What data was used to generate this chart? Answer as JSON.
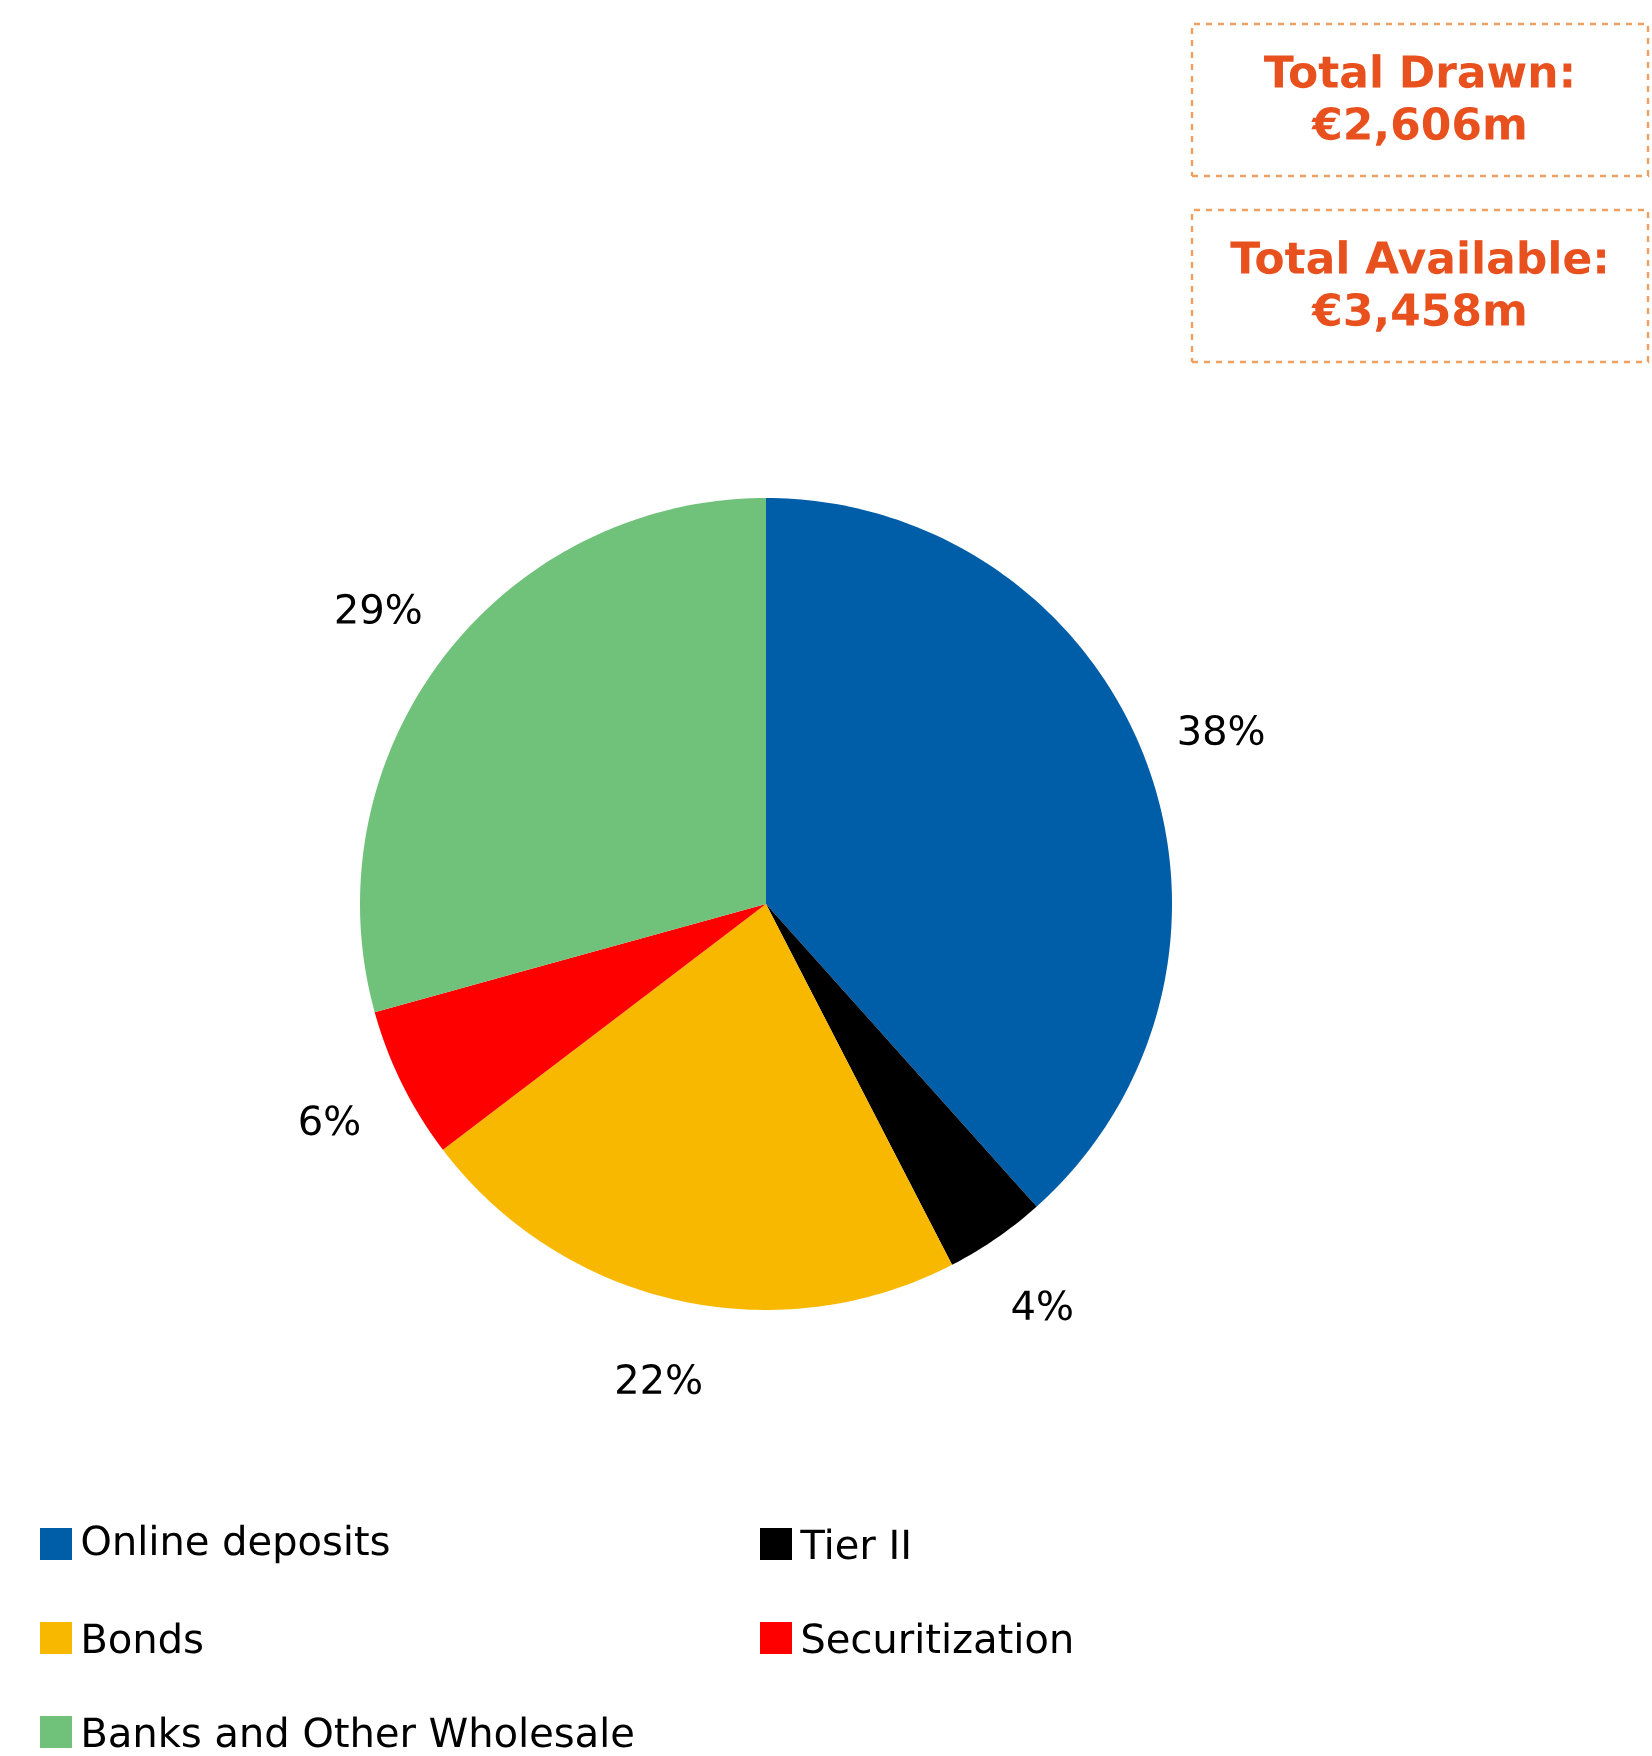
{
  "chart_data": {
    "type": "pie",
    "categories": [
      "Online deposits",
      "Tier II",
      "Bonds",
      "Securitization",
      "Banks and Other Wholesale"
    ],
    "values": [
      38,
      4,
      22,
      6,
      29
    ],
    "colors": [
      "#005ea8",
      "#000000",
      "#f9b800",
      "#ff0000",
      "#70c17a"
    ],
    "value_labels": [
      "38%",
      "4%",
      "22%",
      "6%",
      "29%"
    ],
    "legend": "bottom",
    "annotations": [
      "Total Drawn: €2,606m",
      "Total Available: €3,458m"
    ]
  }
}
